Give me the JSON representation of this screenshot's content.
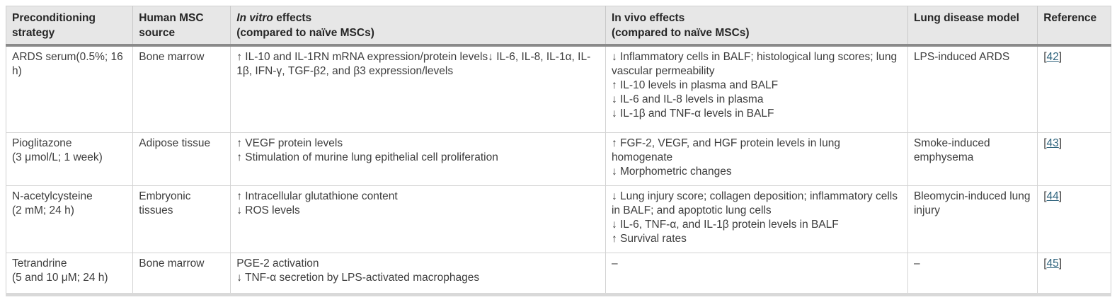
{
  "colors": {
    "header_background": "#e7e7e7",
    "header_rule": "#8a8a8a",
    "cell_border": "#d4d4d4",
    "body_text": "#3d3d3d",
    "reference_link": "#2d627c"
  },
  "table": {
    "columns": [
      {
        "label": "Preconditioning strategy"
      },
      {
        "label": "Human MSC source"
      },
      {
        "label_italic": "In vitro",
        "label_rest": " effects",
        "label_line2": "(compared to naïve MSCs)"
      },
      {
        "label_line1": "In vivo effects",
        "label_line2": "(compared to naïve MSCs)"
      },
      {
        "label": "Lung disease model"
      },
      {
        "label": "Reference"
      }
    ],
    "rows": [
      {
        "strategy": "ARDS serum(0.5%; 16 h)",
        "source": "Bone marrow",
        "in_vitro": [
          "↑ IL-10 and IL-1RN mRNA expression/protein levels↓ IL-6, IL-8, IL-1α, IL-1β, IFN-γ, TGF-β2, and β3 expression/levels"
        ],
        "in_vivo": [
          "↓ Inflammatory cells in BALF; histological lung scores; lung vascular permeability",
          "↑ IL-10 levels in plasma and BALF",
          "↓ IL-6 and IL-8 levels in plasma",
          "↓ IL-1β and TNF-α levels in BALF"
        ],
        "model": "LPS-induced ARDS",
        "reference": "42"
      },
      {
        "strategy": "Pioglitazone\n(3 μmol/L; 1 week)",
        "source": "Adipose tissue",
        "in_vitro": [
          "↑ VEGF protein levels",
          "↑ Stimulation of murine lung epithelial cell proliferation"
        ],
        "in_vivo": [
          "↑ FGF-2, VEGF, and HGF protein levels in lung homogenate",
          "↓ Morphometric changes"
        ],
        "model": "Smoke-induced emphysema",
        "reference": "43"
      },
      {
        "strategy": "N-acetylcysteine\n(2 mM; 24 h)",
        "source": "Embryonic tissues",
        "in_vitro": [
          "↑ Intracellular glutathione content",
          "↓ ROS levels"
        ],
        "in_vivo": [
          "↓ Lung injury score; collagen deposition; inflammatory cells in BALF; and apoptotic lung cells",
          "↓ IL-6, TNF-α, and IL-1β protein levels in BALF",
          "↑ Survival rates"
        ],
        "model": "Bleomycin-induced lung injury",
        "reference": "44"
      },
      {
        "strategy": "Tetrandrine\n(5 and 10 μM; 24 h)",
        "source": "Bone marrow",
        "in_vitro": [
          "PGE-2 activation",
          "↓ TNF-α secretion by LPS-activated macrophages"
        ],
        "in_vivo": [
          "–"
        ],
        "model": "–",
        "reference": "45"
      }
    ]
  }
}
